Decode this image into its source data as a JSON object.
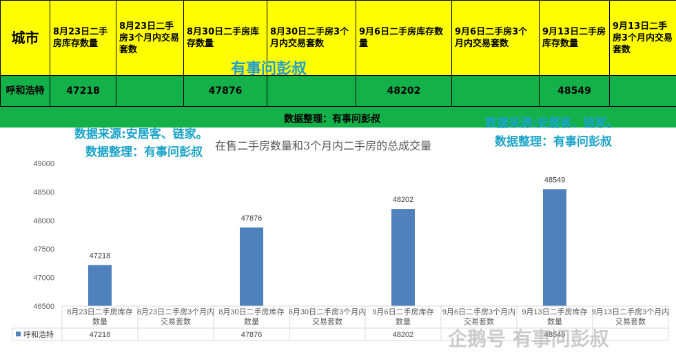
{
  "table": {
    "city_header": "城市",
    "column_headers": [
      "8月23日二手房库存数量",
      "8月23日二手房3个月内交易套数",
      "8月30日二手房库存数量",
      "8月30日二手房3个月内交易套数",
      "9月6日二手房库存数量",
      "9月6日二手房3个月内交易套数",
      "9月13日二手房库存数量",
      "9月13日二手房3个月内交易套数"
    ],
    "row_city": "呼和浩特",
    "row_values": [
      "47218",
      "",
      "47876",
      "",
      "48202",
      "",
      "48549",
      ""
    ],
    "banner": "数据整理：有事问彭叔"
  },
  "watermarks": {
    "top_center": "有事问彭叔",
    "left_line1": "数据来源:安居客、链家。",
    "left_line2": "数据整理：有事问彭叔",
    "right_line1": "数据来源:安居客、链家。",
    "right_line2": "数据整理：有事问彭叔",
    "bottom_right": "企鹅号 有事问彭叔"
  },
  "colors": {
    "header_bg": "#ffff00",
    "row_bg": "#14b04a",
    "bar": "#4f81bd",
    "watermark": "#1aa3c8"
  },
  "chart_data": {
    "type": "bar",
    "title": "在售二手房数量和3个月内二手房的总成交量",
    "categories": [
      "8月23日二手房库存数量",
      "8月23日二手房3个月内交易套数",
      "8月30日二手房库存数量",
      "8月30日二手房3个月内交易套数",
      "9月6日二手房库存数量",
      "9月6日二手房3个月内交易套数",
      "9月13日二手房库存数量",
      "9月13日二手房3个月内交易套数"
    ],
    "series": [
      {
        "name": "呼和浩特",
        "values": [
          47218,
          null,
          47876,
          null,
          48202,
          null,
          48549,
          null
        ]
      }
    ],
    "y_ticks": [
      46500,
      47000,
      47500,
      48000,
      48500,
      49000
    ],
    "ylim": [
      46500,
      49000
    ],
    "data_labels": true,
    "data_table": true,
    "legend_position": "data-table"
  }
}
